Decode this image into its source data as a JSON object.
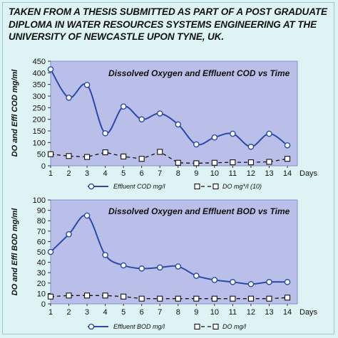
{
  "header": {
    "lines": [
      "TAKEN FROM A THESIS SUBMITTED AS PART OF A POST GRADUATE",
      "DIPLOMA IN WATER RESOURCES SYSTEMS ENGINEERING AT THE",
      "UNIVERSITY OF NEWCASTLE UPON TYNE, UK."
    ]
  },
  "colors": {
    "background": "#ddf3f4",
    "plot_area": "#b9bfe8",
    "series_primary": "#2b4aa8",
    "series_secondary": "#111111"
  },
  "chart_data": [
    {
      "type": "line",
      "title": "Dissolved Oxygen and Effluent COD vs Time",
      "xlabel": "Days",
      "ylabel": "DO and Effl COD mg/ml",
      "x": [
        1,
        2,
        3,
        4,
        5,
        6,
        7,
        8,
        9,
        10,
        11,
        12,
        13,
        14
      ],
      "ylim": [
        0,
        450
      ],
      "yticks": [
        0,
        50,
        100,
        150,
        200,
        250,
        300,
        350,
        400,
        450
      ],
      "grid": false,
      "legend_position": "bottom",
      "series": [
        {
          "name": "Effluent COD mg/l",
          "style": "smooth-solid-circle",
          "values": [
            415,
            293,
            348,
            140,
            255,
            200,
            225,
            178,
            92,
            122,
            138,
            82,
            138,
            88
          ]
        },
        {
          "name": "DO mg*/l (10)",
          "style": "dashed-square",
          "values": [
            50,
            42,
            38,
            58,
            40,
            30,
            60,
            13,
            11,
            13,
            15,
            15,
            17,
            30
          ]
        }
      ]
    },
    {
      "type": "line",
      "title": "Dissolved Oxygen and Effluent BOD vs Time",
      "xlabel": "Days",
      "ylabel": "DO and Effl BOD mg/ml",
      "x": [
        1,
        2,
        3,
        4,
        5,
        6,
        7,
        8,
        9,
        10,
        11,
        12,
        13,
        14
      ],
      "ylim": [
        0,
        100
      ],
      "yticks": [
        0,
        10,
        20,
        30,
        40,
        50,
        60,
        70,
        80,
        90,
        100
      ],
      "grid": false,
      "legend_position": "bottom",
      "series": [
        {
          "name": "Effluent BOD mg/l",
          "style": "smooth-solid-circle",
          "values": [
            50,
            67,
            85,
            47,
            37,
            34,
            35,
            36,
            27,
            23,
            21,
            19,
            21,
            21
          ]
        },
        {
          "name": "DO mg/l",
          "style": "dashed-square",
          "values": [
            7,
            8,
            8,
            8,
            7,
            5,
            5,
            5,
            5,
            5,
            5,
            5,
            5,
            6
          ]
        }
      ]
    }
  ]
}
